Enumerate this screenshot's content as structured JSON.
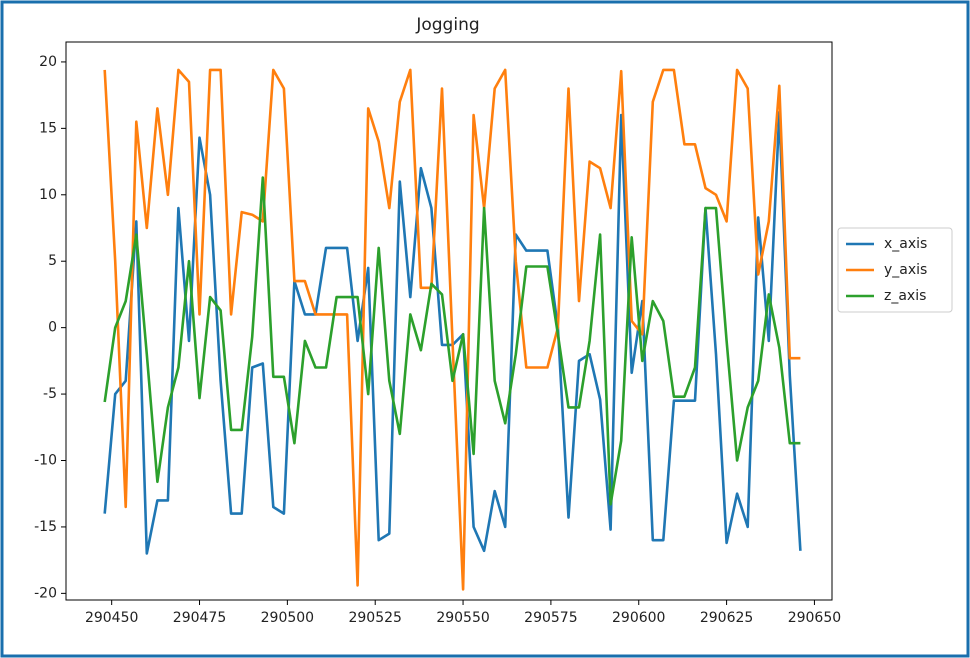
{
  "chart_data": {
    "type": "line",
    "title": "Jogging",
    "x": [
      290448,
      290451,
      290454,
      290457,
      290460,
      290463,
      290466,
      290469,
      290472,
      290475,
      290478,
      290481,
      290484,
      290487,
      290490,
      290493,
      290496,
      290499,
      290502,
      290505,
      290508,
      290511,
      290514,
      290517,
      290520,
      290523,
      290526,
      290529,
      290532,
      290535,
      290538,
      290541,
      290544,
      290547,
      290550,
      290553,
      290556,
      290559,
      290562,
      290565,
      290568,
      290571,
      290574,
      290577,
      290580,
      290583,
      290586,
      290589,
      290592,
      290595,
      290598,
      290601,
      290604,
      290607,
      290610,
      290613,
      290616,
      290619,
      290622,
      290625,
      290628,
      290631,
      290634,
      290637,
      290640,
      290643,
      290646
    ],
    "series": [
      {
        "name": "x_axis",
        "color": "#1f77b4",
        "values": [
          -14,
          -5,
          -4,
          8,
          -17,
          -13,
          -13,
          9,
          -1,
          14.3,
          10,
          -4,
          -14,
          -14,
          -3,
          -2.7,
          -13.5,
          -14,
          3.5,
          1,
          1,
          6,
          6,
          6,
          -1,
          4.5,
          -16,
          -15.5,
          11,
          2.3,
          12,
          9,
          -1.3,
          -1.3,
          -0.5,
          -15,
          -16.8,
          -12.3,
          -15,
          7,
          5.8,
          5.8,
          5.8,
          0,
          -14.3,
          -2.5,
          -2,
          -5.4,
          -15.2,
          16,
          -3.4,
          2,
          -16,
          -16,
          -5.5,
          -5.5,
          -5.5,
          9,
          -2,
          -16.2,
          -12.5,
          -15,
          8.3,
          -1,
          16.2,
          -3.6,
          -16.8
        ]
      },
      {
        "name": "y_axis",
        "color": "#ff7f0e",
        "values": [
          19.4,
          5,
          -13.5,
          15.5,
          7.5,
          16.5,
          10,
          19.4,
          18.5,
          1,
          19.4,
          19.4,
          1,
          8.7,
          8.5,
          8,
          19.4,
          18,
          3.5,
          3.5,
          1,
          1,
          1,
          1,
          -19.4,
          16.5,
          14,
          9,
          17,
          19.4,
          3,
          3,
          18,
          -1,
          -19.7,
          16,
          9,
          18,
          19.4,
          5,
          -3,
          -3,
          -3,
          0,
          18,
          2,
          12.5,
          12,
          9,
          19.3,
          0.5,
          -0.5,
          17,
          19.4,
          19.4,
          13.8,
          13.8,
          10.5,
          10,
          8,
          19.4,
          18,
          4,
          8,
          18.2,
          -2.3,
          -2.3
        ]
      },
      {
        "name": "z_axis",
        "color": "#2ca02c",
        "values": [
          -5.6,
          0,
          2,
          7,
          -2,
          -11.6,
          -6,
          -3,
          5,
          -5.3,
          2.3,
          1.3,
          -7.7,
          -7.7,
          -0.7,
          11.3,
          -3.7,
          -3.7,
          -8.7,
          -1,
          -3,
          -3,
          2.3,
          2.3,
          2.3,
          -5,
          6,
          -4,
          -8,
          1,
          -1.7,
          3.3,
          2.5,
          -4,
          -0.5,
          -9.5,
          9,
          -4,
          -7.2,
          -2,
          4.6,
          4.6,
          4.6,
          -0.5,
          -6,
          -6,
          -1,
          7,
          -13.3,
          -8.5,
          6.8,
          -2.5,
          2,
          0.5,
          -5.2,
          -5.2,
          -3,
          9,
          9,
          -1,
          -10,
          -6,
          -4,
          2.5,
          -1.5,
          -8.7,
          -8.7
        ]
      }
    ],
    "xlim": [
      290437,
      290655
    ],
    "ylim": [
      -20.5,
      21.5
    ],
    "xticks": [
      290450,
      290475,
      290500,
      290525,
      290550,
      290575,
      290600,
      290625,
      290650
    ],
    "yticks": [
      -20,
      -15,
      -10,
      -5,
      0,
      5,
      10,
      15,
      20
    ],
    "legend": "outside-right"
  }
}
